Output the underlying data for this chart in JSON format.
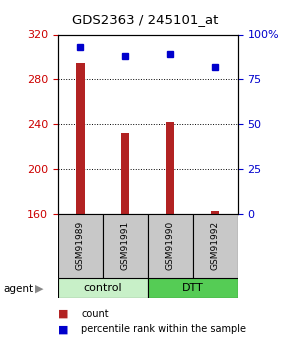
{
  "title": "GDS2363 / 245101_at",
  "samples": [
    "GSM91989",
    "GSM91991",
    "GSM91990",
    "GSM91992"
  ],
  "groups": [
    "control",
    "control",
    "DTT",
    "DTT"
  ],
  "counts": [
    295,
    232,
    242,
    163
  ],
  "percentiles": [
    93,
    88,
    89,
    82
  ],
  "ylim_left": [
    160,
    320
  ],
  "ylim_right": [
    0,
    100
  ],
  "yticks_left": [
    160,
    200,
    240,
    280,
    320
  ],
  "yticks_right": [
    0,
    25,
    50,
    75,
    100
  ],
  "bar_color": "#b22222",
  "dot_color": "#0000cc",
  "bar_width": 0.18,
  "control_color": "#c8f0c8",
  "dtt_color": "#55cc55",
  "bg_color": "#ffffff",
  "sample_box_color": "#c8c8c8"
}
